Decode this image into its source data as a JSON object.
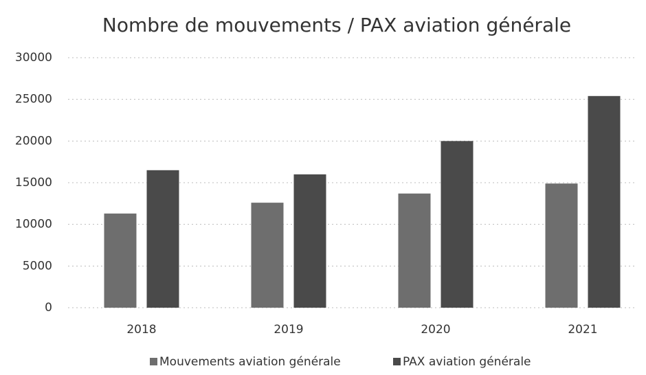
{
  "chart_data": {
    "type": "bar",
    "title": "Nombre de mouvements / PAX aviation générale",
    "categories": [
      "2018",
      "2019",
      "2020",
      "2021"
    ],
    "series": [
      {
        "name": "Mouvements aviation générale",
        "color": "#6e6e6e",
        "values": [
          11300,
          12600,
          13700,
          14900
        ]
      },
      {
        "name": "PAX aviation générale",
        "color": "#4a4a4a",
        "values": [
          16500,
          16000,
          20000,
          25400
        ]
      }
    ],
    "ylim": [
      0,
      30000
    ],
    "yticks": [
      0,
      5000,
      10000,
      15000,
      20000,
      25000,
      30000
    ],
    "grid": true,
    "legend": "bottom"
  }
}
